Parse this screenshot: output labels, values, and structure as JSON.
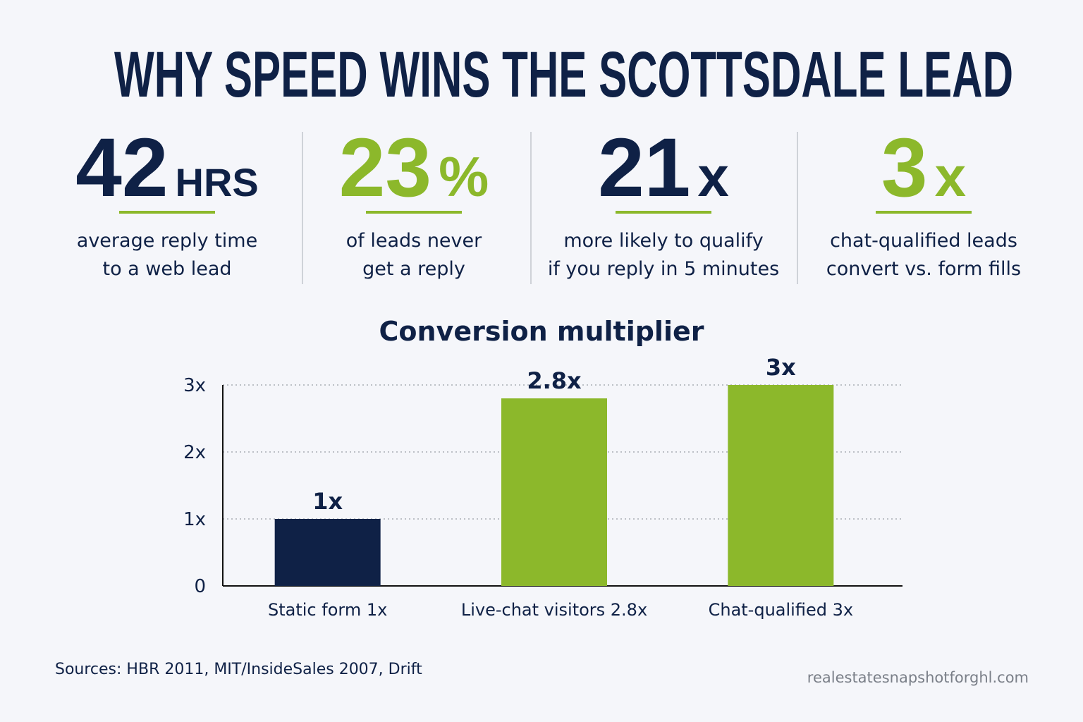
{
  "header": {
    "title": "WHY SPEED WINS THE SCOTTSDALE LEAD"
  },
  "stats": [
    {
      "number": "42",
      "unit": "HRS",
      "color": "#0f2146",
      "lines": [
        "average reply time",
        "to a web lead"
      ]
    },
    {
      "number": "23",
      "unit": "%",
      "color": "#8cb82b",
      "lines": [
        "of leads never",
        "get a reply"
      ]
    },
    {
      "number": "21",
      "unit": "x",
      "color": "#0f2146",
      "lines": [
        "more likely to qualify",
        "if you reply in 5 minutes"
      ]
    },
    {
      "number": "3",
      "unit": "x",
      "color": "#8cb82b",
      "lines": [
        "chat-qualified leads",
        "convert vs. form fills"
      ]
    }
  ],
  "chart_data": {
    "type": "bar",
    "title": "Conversion multiplier",
    "categories": [
      "Static form 1x",
      "Live-chat visitors 2.8x",
      "Chat-qualified 3x"
    ],
    "values": [
      1,
      2.8,
      3
    ],
    "value_labels": [
      "1x",
      "2.8x",
      "3x"
    ],
    "colors": [
      "#0f2146",
      "#8cb82b",
      "#8cb82b"
    ],
    "ylim": [
      0,
      3
    ],
    "yticks": [
      0,
      {
        "value": 1,
        "label": "1x"
      },
      {
        "value": 2,
        "label": "2x"
      },
      {
        "value": 3,
        "label": "3x"
      }
    ],
    "grid": true
  },
  "footer": {
    "sources": "Sources: HBR 2011, MIT/InsideSales 2007, Drift",
    "site": "realestatesnapshotforghl.com"
  }
}
